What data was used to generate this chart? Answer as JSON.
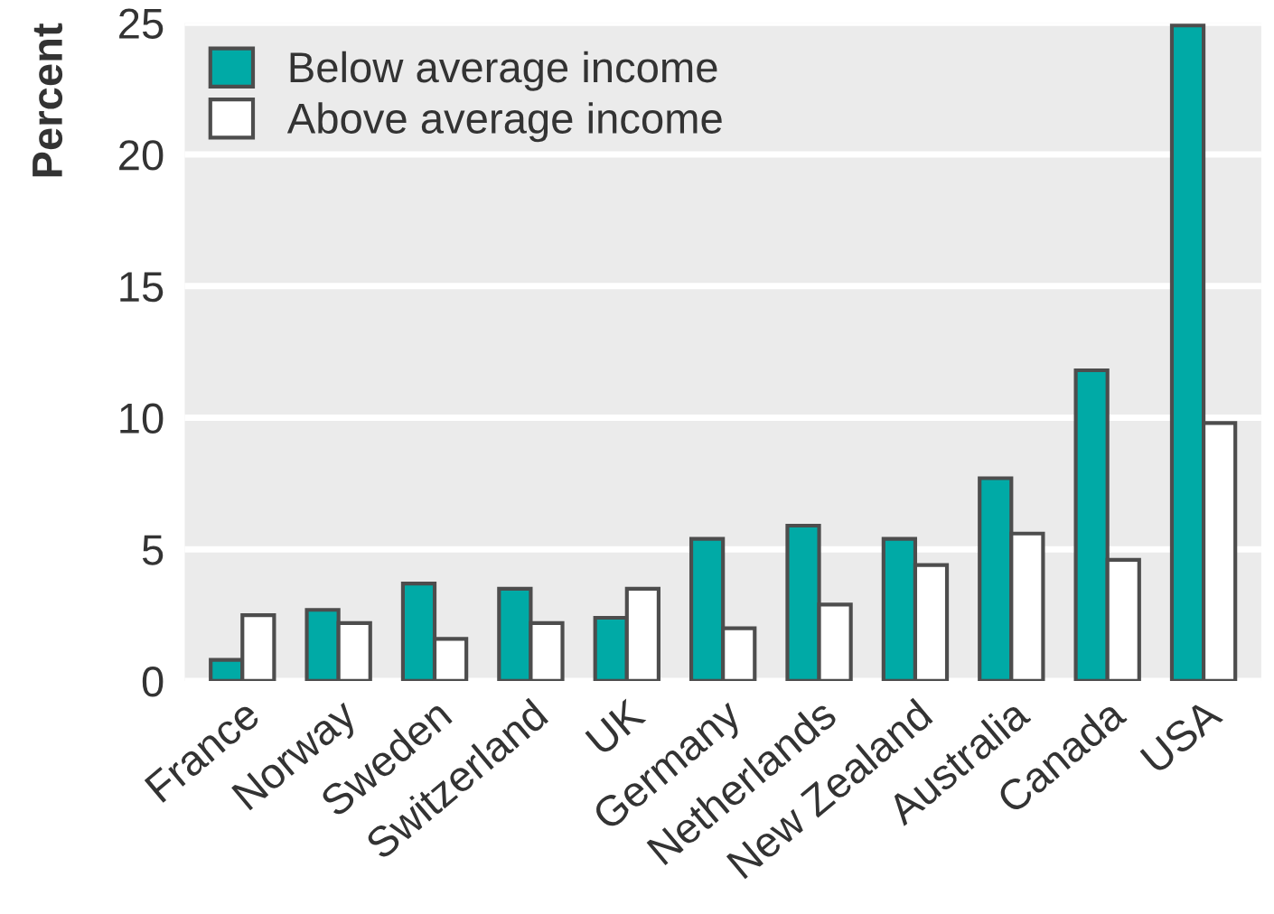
{
  "chart_data": {
    "type": "bar",
    "ylabel": "Percent",
    "categories": [
      "France",
      "Norway",
      "Sweden",
      "Switzerland",
      "UK",
      "Germany",
      "Netherlands",
      "New Zealand",
      "Australia",
      "Canada",
      "USA"
    ],
    "series": [
      {
        "name": "Below average income",
        "color": "#00aaa6",
        "values": [
          0.8,
          2.7,
          3.7,
          3.5,
          2.4,
          5.4,
          5.9,
          5.4,
          7.7,
          11.8,
          24.9
        ]
      },
      {
        "name": "Above average income",
        "color": "#ffffff",
        "values": [
          2.5,
          2.2,
          1.6,
          2.2,
          3.5,
          2.0,
          2.9,
          4.4,
          5.6,
          4.6,
          9.8
        ]
      }
    ],
    "ylim": [
      0,
      25
    ],
    "yticks": [
      0,
      5,
      10,
      15,
      20,
      25
    ],
    "grid": "y",
    "legend": "top left"
  }
}
